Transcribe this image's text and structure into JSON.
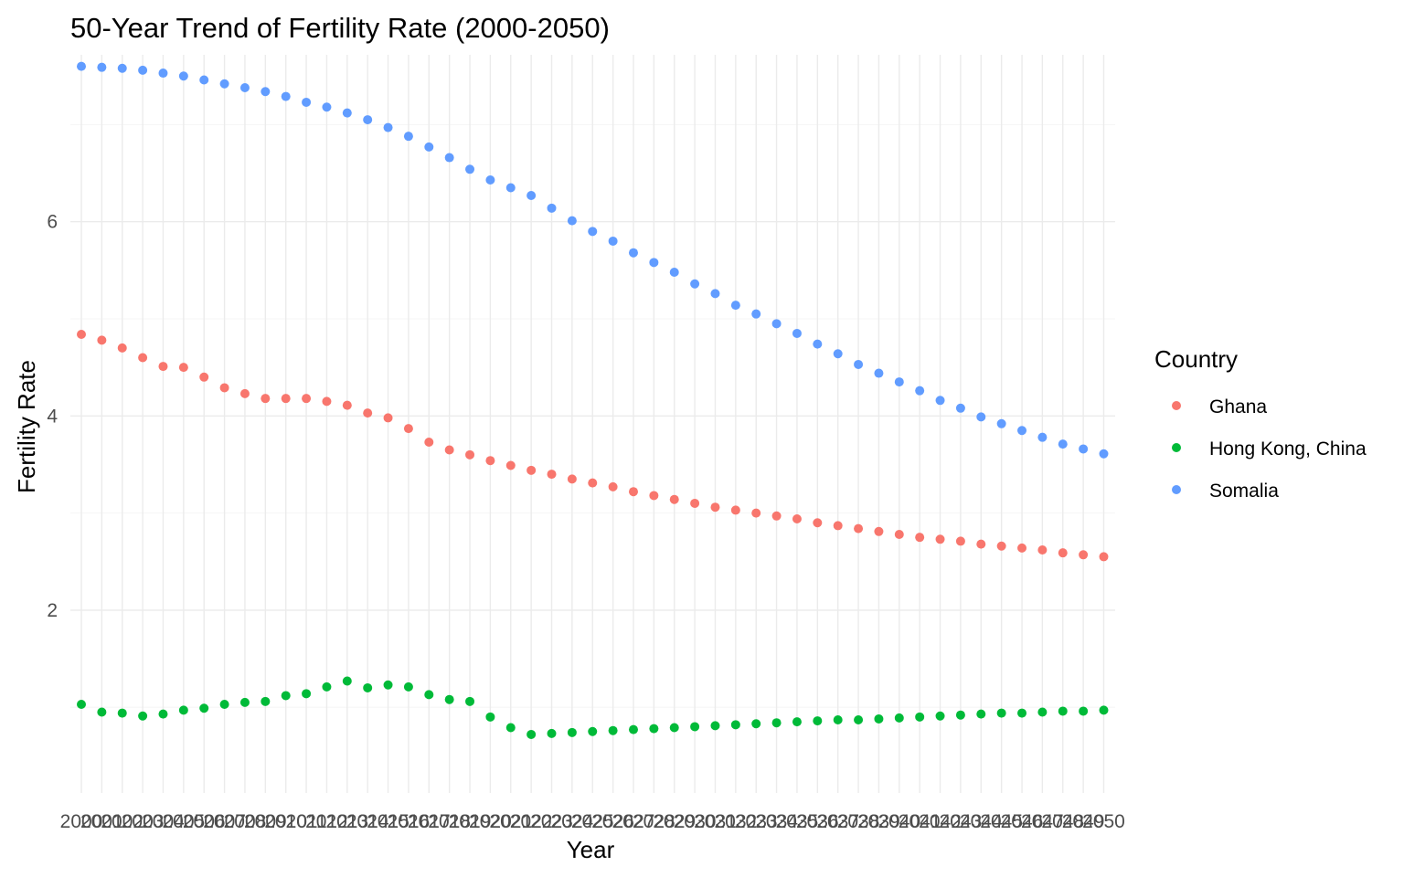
{
  "chart_data": {
    "type": "scatter",
    "title": "50-Year Trend of Fertility Rate (2000-2050)",
    "xlabel": "Year",
    "ylabel": "Fertility Rate",
    "x": [
      2000,
      2001,
      2002,
      2003,
      2004,
      2005,
      2006,
      2007,
      2008,
      2009,
      2010,
      2011,
      2012,
      2013,
      2014,
      2015,
      2016,
      2017,
      2018,
      2019,
      2020,
      2021,
      2022,
      2023,
      2024,
      2025,
      2026,
      2027,
      2028,
      2029,
      2030,
      2031,
      2032,
      2033,
      2034,
      2035,
      2036,
      2037,
      2038,
      2039,
      2040,
      2041,
      2042,
      2043,
      2044,
      2045,
      2046,
      2047,
      2048,
      2049,
      2050
    ],
    "x_tick_labels": [
      "2000",
      "2001",
      "2002",
      "2003",
      "2004",
      "2005",
      "2006",
      "2007",
      "2008",
      "2009",
      "2010",
      "2011",
      "2012",
      "2013",
      "2014",
      "2015",
      "2016",
      "2017",
      "2018",
      "2019",
      "2020",
      "2021",
      "2022",
      "2023",
      "2024",
      "2025",
      "2026",
      "2027",
      "2028",
      "2029",
      "2030",
      "2031",
      "2032",
      "2033",
      "2034",
      "2035",
      "2036",
      "2037",
      "2038",
      "2039",
      "2040",
      "2041",
      "2042",
      "2043",
      "2044",
      "2045",
      "2046",
      "2047",
      "2048",
      "2049",
      "2050"
    ],
    "ylim": [
      0.6,
      7.9
    ],
    "y_ticks": [
      2,
      4,
      6
    ],
    "y_minor_ticks": [
      1,
      3,
      5,
      7
    ],
    "grid": true,
    "legend": {
      "title": "Country",
      "position": "right"
    },
    "series": [
      {
        "name": "Ghana",
        "color": "#F8766D",
        "values": [
          4.84,
          4.78,
          4.7,
          4.6,
          4.51,
          4.5,
          4.4,
          4.29,
          4.23,
          4.18,
          4.18,
          4.18,
          4.15,
          4.11,
          4.03,
          3.98,
          3.87,
          3.73,
          3.65,
          3.6,
          3.54,
          3.49,
          3.44,
          3.4,
          3.35,
          3.31,
          3.27,
          3.22,
          3.18,
          3.14,
          3.1,
          3.06,
          3.03,
          3.0,
          2.97,
          2.94,
          2.9,
          2.87,
          2.84,
          2.81,
          2.78,
          2.75,
          2.73,
          2.71,
          2.68,
          2.66,
          2.64,
          2.62,
          2.59,
          2.57,
          2.55
        ]
      },
      {
        "name": "Hong Kong, China",
        "color": "#00BA38",
        "values": [
          1.03,
          0.95,
          0.94,
          0.91,
          0.93,
          0.97,
          0.99,
          1.03,
          1.05,
          1.06,
          1.12,
          1.14,
          1.21,
          1.27,
          1.2,
          1.23,
          1.21,
          1.13,
          1.08,
          1.06,
          0.9,
          0.79,
          0.72,
          0.73,
          0.74,
          0.75,
          0.76,
          0.77,
          0.78,
          0.79,
          0.8,
          0.81,
          0.82,
          0.83,
          0.84,
          0.85,
          0.86,
          0.87,
          0.87,
          0.88,
          0.89,
          0.9,
          0.91,
          0.92,
          0.93,
          0.94,
          0.94,
          0.95,
          0.96,
          0.96,
          0.97
        ]
      },
      {
        "name": "Somalia",
        "color": "#619CFF",
        "values": [
          7.6,
          7.59,
          7.58,
          7.56,
          7.53,
          7.5,
          7.46,
          7.42,
          7.38,
          7.34,
          7.29,
          7.23,
          7.18,
          7.12,
          7.05,
          6.97,
          6.88,
          6.77,
          6.66,
          6.54,
          6.43,
          6.35,
          6.27,
          6.14,
          6.01,
          5.9,
          5.8,
          5.68,
          5.58,
          5.48,
          5.36,
          5.26,
          5.14,
          5.05,
          4.95,
          4.85,
          4.74,
          4.64,
          4.53,
          4.44,
          4.35,
          4.26,
          4.16,
          4.08,
          3.99,
          3.92,
          3.85,
          3.78,
          3.71,
          3.66,
          3.61
        ]
      }
    ]
  }
}
